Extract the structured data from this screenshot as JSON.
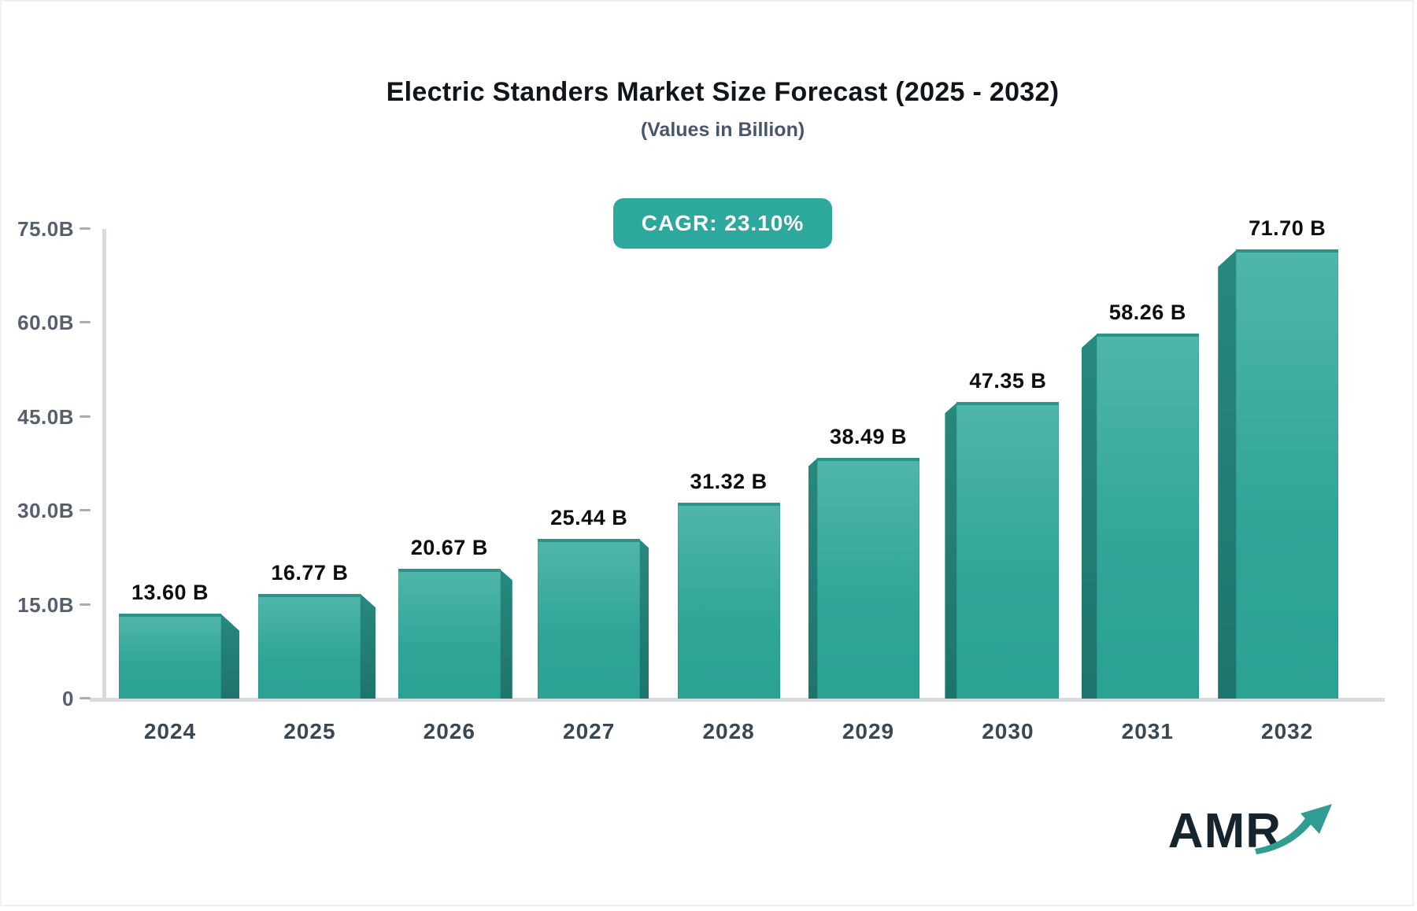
{
  "header": {
    "title": "Electric Standers Market Size Forecast (2025 - 2032)",
    "subtitle": "(Values in Billion)",
    "cagr_label": "CAGR: 23.10%"
  },
  "chart_data": {
    "type": "bar",
    "title": "Electric Standers Market Size Forecast (2025 - 2032)",
    "subtitle": "(Values in Billion)",
    "cagr_percent": "23.10%",
    "categories": [
      "2024",
      "2025",
      "2026",
      "2027",
      "2028",
      "2029",
      "2030",
      "2031",
      "2032"
    ],
    "values": [
      13.6,
      16.77,
      20.67,
      25.44,
      31.32,
      38.49,
      47.35,
      58.26,
      71.7
    ],
    "value_labels": [
      "13.60 B",
      "16.77 B",
      "20.67 B",
      "25.44 B",
      "31.32 B",
      "38.49 B",
      "47.35 B",
      "58.26 B",
      "71.70 B"
    ],
    "xlabel": "",
    "ylabel": "",
    "ylim": [
      0,
      75
    ],
    "yticks": [
      {
        "value": 0,
        "label": "0"
      },
      {
        "value": 15,
        "label": "15.0B"
      },
      {
        "value": 30,
        "label": "30.0B"
      },
      {
        "value": 45,
        "label": "45.0B"
      },
      {
        "value": 60,
        "label": "60.0B"
      },
      {
        "value": 75,
        "label": "75.0B"
      }
    ],
    "grid": false,
    "legend": "none",
    "bar_style": "3d-perspective"
  },
  "branding": {
    "logo_text": "AMR"
  },
  "colors": {
    "title_color": "#10151a",
    "subtitle_color": "#47566c",
    "badge_bg": "#2ca89c",
    "bar_face_top": "#4fb6a9",
    "bar_face_mid": "#2fa598",
    "bar_face_bottom": "#2aa294",
    "bar_top_edge": "#28948a",
    "bar_side_top": "#27897e",
    "bar_side_bottom": "#1e746b",
    "axis_line": "#d7dade",
    "tick_color": "#555f6d",
    "xlabel_color": "#3a4754",
    "value_label_color": "#0b0e11",
    "logo_text_color": "#16242e",
    "logo_arrow_color": "#2f9d92"
  }
}
